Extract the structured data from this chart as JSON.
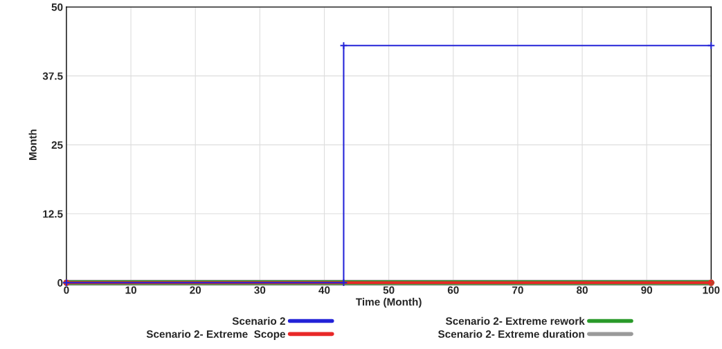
{
  "chart_data": {
    "type": "line",
    "xlabel": "Time (Month)",
    "ylabel": "Month",
    "xlim": [
      0,
      100
    ],
    "xticks": [
      0,
      10,
      20,
      30,
      40,
      50,
      60,
      70,
      80,
      90,
      100
    ],
    "ylim": [
      0,
      50
    ],
    "yticks": [
      0,
      12.5,
      25,
      37.5,
      50
    ],
    "grid": true,
    "legend": "bottom",
    "series": [
      {
        "name": "Scenario 2",
        "color": "#2323d8",
        "marker": "cross",
        "x": [
          0,
          43,
          43,
          100
        ],
        "values": [
          0,
          0,
          43,
          43
        ]
      },
      {
        "name": "Scenario 2- Extreme  Scope",
        "color": "#e82828",
        "marker": "circle",
        "x": [
          0,
          100
        ],
        "values": [
          0,
          0
        ]
      },
      {
        "name": "Scenario 2- Extreme rework",
        "color": "#2a9a2a",
        "marker": "circle",
        "x": [
          0,
          100
        ],
        "values": [
          0,
          0
        ]
      },
      {
        "name": "Scenario 2- Extreme duration",
        "color": "#9a9a9a",
        "marker": "cross",
        "x": [
          0,
          100
        ],
        "values": [
          0,
          0
        ]
      }
    ]
  }
}
